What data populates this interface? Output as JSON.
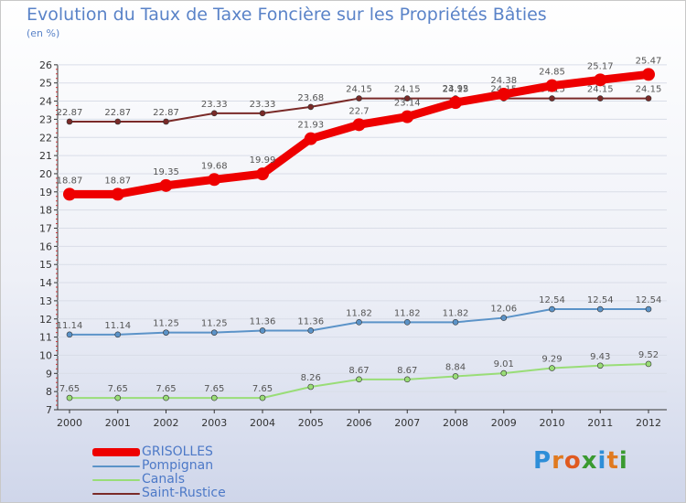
{
  "header": {
    "title": "Evolution du Taux de Taxe Foncière sur les Propriétés Bâties",
    "unit": "(en %)"
  },
  "brand": {
    "letters": [
      "P",
      "r",
      "o",
      "x",
      "i",
      "t",
      "i"
    ],
    "colors": [
      "#2e8ed8",
      "#e07a20",
      "#e05a20",
      "#3a9a30",
      "#2e8ed8",
      "#e07a20",
      "#3a9a30"
    ]
  },
  "chart_data": {
    "type": "line",
    "title": "Evolution du Taux de Taxe Foncière sur les Propriétés Bâties",
    "ylabel": "(en %)",
    "ylim": [
      7,
      26
    ],
    "yticks": [
      "7",
      "8",
      "9",
      "10",
      "11",
      "12",
      "13",
      "14",
      "15",
      "16",
      "17",
      "18",
      "19",
      "20",
      "21",
      "22",
      "23",
      "24",
      "25",
      "26"
    ],
    "categories": [
      "2000",
      "2001",
      "2002",
      "2003",
      "2004",
      "2005",
      "2006",
      "2007",
      "2008",
      "2009",
      "2010",
      "2011",
      "2012"
    ],
    "series": [
      {
        "name": "Saint-Rustice",
        "color": "#7a2a28",
        "values": [
          22.87,
          22.87,
          22.87,
          23.33,
          23.33,
          23.68,
          24.15,
          24.15,
          24.15,
          24.15,
          24.15,
          24.15,
          24.15
        ],
        "labels": [
          "22.87",
          "22.87",
          "22.87",
          "23.33",
          "23.33",
          "23.68",
          "24.15",
          "24.15",
          "24.15",
          "24.15",
          "24.15",
          "24.15",
          "24.15"
        ]
      },
      {
        "name": "GRISOLLES",
        "color": "#ee0000",
        "values": [
          18.87,
          18.87,
          19.35,
          19.68,
          19.99,
          21.93,
          22.7,
          23.14,
          23.92,
          24.38,
          24.85,
          25.17,
          25.47
        ],
        "labels": [
          "18.87",
          "18.87",
          "19.35",
          "19.68",
          "19.99",
          "21.93",
          "22.7",
          "23.14",
          "23.92",
          "24.38",
          "24.85",
          "25.17",
          "25.47"
        ]
      },
      {
        "name": "Pompignan",
        "color": "#5b93c8",
        "values": [
          11.14,
          11.14,
          11.25,
          11.25,
          11.36,
          11.36,
          11.82,
          11.82,
          11.82,
          12.06,
          12.54,
          12.54,
          12.54
        ],
        "labels": [
          "11.14",
          "11.14",
          "11.25",
          "11.25",
          "11.36",
          "11.36",
          "11.82",
          "11.82",
          "11.82",
          "12.06",
          "12.54",
          "12.54",
          "12.54"
        ]
      },
      {
        "name": "Canals",
        "color": "#99dd77",
        "values": [
          7.65,
          7.65,
          7.65,
          7.65,
          7.65,
          8.26,
          8.67,
          8.67,
          8.84,
          9.01,
          9.29,
          9.43,
          9.52
        ],
        "labels": [
          "7.65",
          "7.65",
          "7.65",
          "7.65",
          "7.65",
          "8.26",
          "8.67",
          "8.67",
          "8.84",
          "9.01",
          "9.29",
          "9.43",
          "9.52"
        ]
      }
    ],
    "legend": [
      "GRISOLLES",
      "Pompignan",
      "Canals",
      "Saint-Rustice"
    ]
  }
}
